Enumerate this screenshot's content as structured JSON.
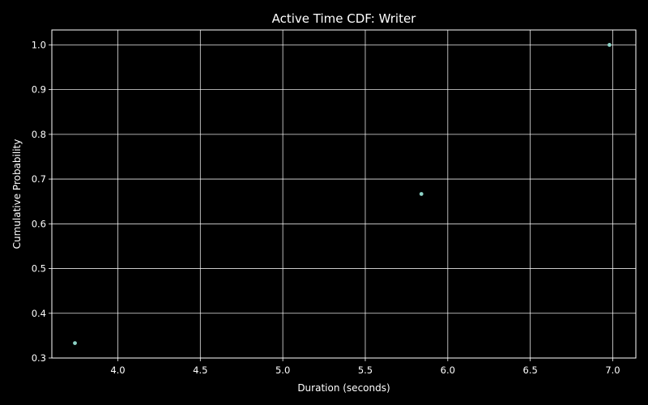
{
  "chart_data": {
    "type": "scatter",
    "title": "Active Time CDF: Writer",
    "xlabel": "Duration (seconds)",
    "ylabel": "Cumulative Probability",
    "xlim": [
      3.6,
      7.14
    ],
    "ylim": [
      0.3,
      1.0333
    ],
    "xticks": [
      4.0,
      4.5,
      5.0,
      5.5,
      6.0,
      6.5,
      7.0
    ],
    "xtick_labels": [
      "4.0",
      "4.5",
      "5.0",
      "5.5",
      "6.0",
      "6.5",
      "7.0"
    ],
    "yticks": [
      0.3,
      0.4,
      0.5,
      0.6,
      0.7,
      0.8,
      0.9,
      1.0
    ],
    "ytick_labels": [
      "0.3",
      "0.4",
      "0.5",
      "0.6",
      "0.7",
      "0.8",
      "0.9",
      "1.0"
    ],
    "grid": true,
    "series": [
      {
        "name": "Writer",
        "color": "#8dd3c7",
        "x": [
          3.74,
          5.84,
          6.98
        ],
        "y": [
          0.3333,
          0.6667,
          1.0
        ]
      }
    ],
    "background_color": "#000000",
    "foreground_color": "#ffffff"
  }
}
